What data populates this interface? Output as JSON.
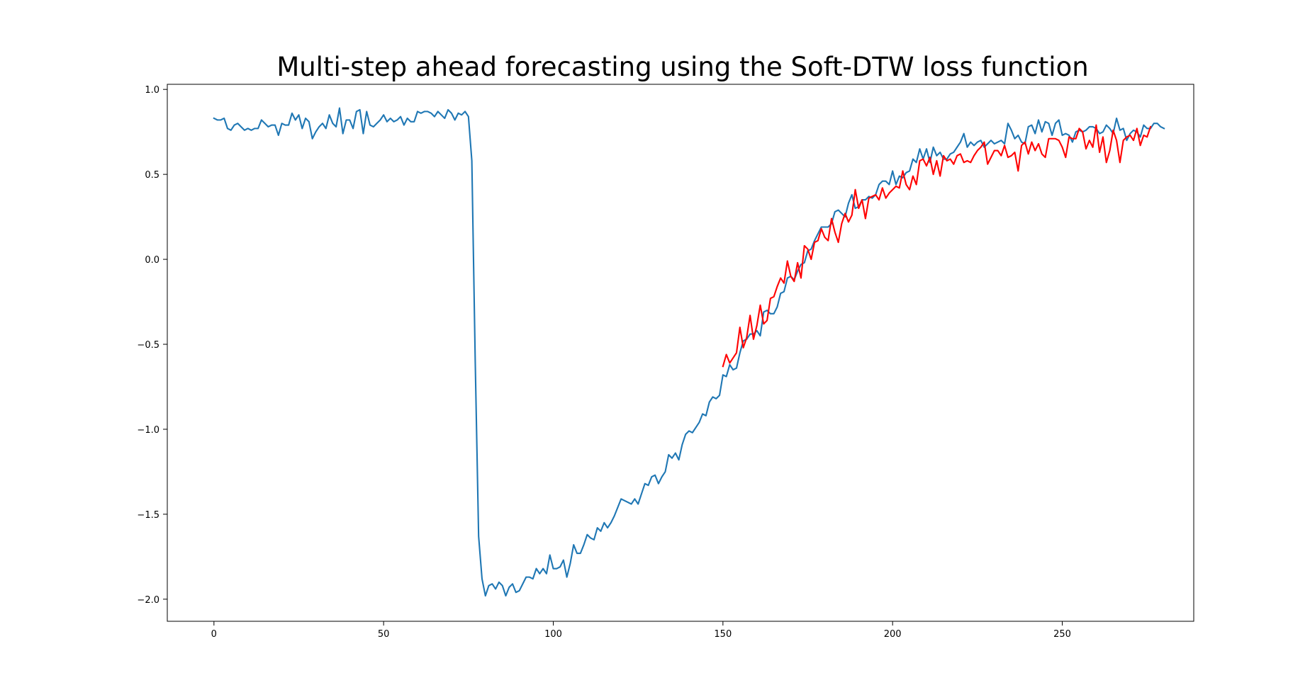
{
  "chart_data": {
    "type": "line",
    "title": "Multi-step ahead forecasting using the Soft-DTW loss function",
    "xlabel": "",
    "ylabel": "",
    "xlim": [
      -13.75,
      288.75
    ],
    "ylim": [
      -2.13,
      1.03
    ],
    "xticks": [
      0,
      50,
      100,
      150,
      200,
      250
    ],
    "yticks": [
      1.0,
      0.5,
      0.0,
      -0.5,
      -1.0,
      -1.5,
      -2.0
    ],
    "xtick_labels": [
      "0",
      "50",
      "100",
      "150",
      "200",
      "250"
    ],
    "ytick_labels": [
      "1.0",
      "0.5",
      "0.0",
      "−0.5",
      "−1.0",
      "−1.5",
      "−2.0"
    ],
    "grid": false,
    "legend": "none",
    "series": [
      {
        "color": "#1f77b4",
        "x_start": 0,
        "values": [
          0.83,
          0.82,
          0.82,
          0.83,
          0.77,
          0.76,
          0.79,
          0.8,
          0.78,
          0.76,
          0.77,
          0.76,
          0.77,
          0.77,
          0.82,
          0.8,
          0.78,
          0.79,
          0.79,
          0.73,
          0.8,
          0.79,
          0.79,
          0.86,
          0.82,
          0.85,
          0.77,
          0.83,
          0.81,
          0.71,
          0.75,
          0.78,
          0.8,
          0.77,
          0.85,
          0.8,
          0.78,
          0.89,
          0.74,
          0.82,
          0.82,
          0.77,
          0.87,
          0.88,
          0.74,
          0.87,
          0.79,
          0.78,
          0.8,
          0.82,
          0.85,
          0.81,
          0.83,
          0.81,
          0.82,
          0.84,
          0.79,
          0.83,
          0.81,
          0.81,
          0.87,
          0.86,
          0.87,
          0.87,
          0.86,
          0.84,
          0.87,
          0.85,
          0.83,
          0.88,
          0.86,
          0.82,
          0.86,
          0.85,
          0.87,
          0.84,
          0.58,
          -0.6,
          -1.63,
          -1.88,
          -1.98,
          -1.92,
          -1.91,
          -1.94,
          -1.9,
          -1.92,
          -1.98,
          -1.93,
          -1.91,
          -1.96,
          -1.95,
          -1.91,
          -1.87,
          -1.87,
          -1.88,
          -1.82,
          -1.85,
          -1.82,
          -1.85,
          -1.74,
          -1.82,
          -1.82,
          -1.81,
          -1.77,
          -1.87,
          -1.79,
          -1.68,
          -1.73,
          -1.73,
          -1.68,
          -1.62,
          -1.64,
          -1.65,
          -1.58,
          -1.6,
          -1.55,
          -1.58,
          -1.55,
          -1.51,
          -1.46,
          -1.41,
          -1.42,
          -1.43,
          -1.44,
          -1.41,
          -1.44,
          -1.38,
          -1.32,
          -1.33,
          -1.28,
          -1.27,
          -1.32,
          -1.28,
          -1.25,
          -1.15,
          -1.17,
          -1.14,
          -1.18,
          -1.09,
          -1.03,
          -1.01,
          -1.02,
          -0.99,
          -0.96,
          -0.91,
          -0.92,
          -0.84,
          -0.81,
          -0.82,
          -0.8,
          -0.68,
          -0.69,
          -0.62,
          -0.65,
          -0.64,
          -0.55,
          -0.48,
          -0.47,
          -0.44,
          -0.44,
          -0.42,
          -0.45,
          -0.31,
          -0.3,
          -0.32,
          -0.32,
          -0.28,
          -0.2,
          -0.19,
          -0.11,
          -0.1,
          -0.12,
          -0.07,
          -0.03,
          -0.02,
          0.05,
          0.06,
          0.11,
          0.15,
          0.19,
          0.19,
          0.19,
          0.21,
          0.28,
          0.29,
          0.27,
          0.25,
          0.33,
          0.38,
          0.3,
          0.31,
          0.35,
          0.35,
          0.37,
          0.36,
          0.38,
          0.44,
          0.46,
          0.46,
          0.44,
          0.52,
          0.44,
          0.49,
          0.48,
          0.51,
          0.52,
          0.59,
          0.57,
          0.65,
          0.59,
          0.65,
          0.57,
          0.66,
          0.61,
          0.63,
          0.59,
          0.59,
          0.62,
          0.63,
          0.66,
          0.69,
          0.74,
          0.66,
          0.69,
          0.67,
          0.69,
          0.7,
          0.66,
          0.68,
          0.7,
          0.68,
          0.69,
          0.7,
          0.68,
          0.8,
          0.76,
          0.71,
          0.73,
          0.69,
          0.68,
          0.78,
          0.79,
          0.74,
          0.82,
          0.75,
          0.81,
          0.8,
          0.73,
          0.8,
          0.82,
          0.73,
          0.74,
          0.73,
          0.69,
          0.75,
          0.76,
          0.75,
          0.76,
          0.78,
          0.78,
          0.77,
          0.74,
          0.75,
          0.79,
          0.77,
          0.74,
          0.83,
          0.76,
          0.77,
          0.7,
          0.74,
          0.76,
          0.75,
          0.72,
          0.79,
          0.77,
          0.77,
          0.8,
          0.8,
          0.78,
          0.77
        ]
      },
      {
        "color": "#ff0000",
        "x_start": 150,
        "values": [
          -0.63,
          -0.56,
          -0.61,
          -0.58,
          -0.55,
          -0.4,
          -0.52,
          -0.46,
          -0.33,
          -0.47,
          -0.39,
          -0.27,
          -0.38,
          -0.36,
          -0.23,
          -0.22,
          -0.16,
          -0.11,
          -0.14,
          -0.01,
          -0.1,
          -0.13,
          -0.02,
          -0.11,
          0.08,
          0.06,
          0.0,
          0.1,
          0.11,
          0.18,
          0.13,
          0.11,
          0.24,
          0.16,
          0.1,
          0.21,
          0.27,
          0.22,
          0.26,
          0.41,
          0.3,
          0.35,
          0.24,
          0.36,
          0.37,
          0.38,
          0.35,
          0.42,
          0.36,
          0.39,
          0.41,
          0.43,
          0.42,
          0.52,
          0.44,
          0.41,
          0.49,
          0.44,
          0.58,
          0.59,
          0.55,
          0.6,
          0.5,
          0.58,
          0.49,
          0.61,
          0.58,
          0.59,
          0.56,
          0.61,
          0.62,
          0.57,
          0.58,
          0.57,
          0.61,
          0.64,
          0.66,
          0.69,
          0.56,
          0.6,
          0.64,
          0.64,
          0.61,
          0.67,
          0.6,
          0.61,
          0.63,
          0.52,
          0.67,
          0.69,
          0.62,
          0.69,
          0.64,
          0.68,
          0.62,
          0.6,
          0.71,
          0.71,
          0.71,
          0.7,
          0.66,
          0.6,
          0.72,
          0.71,
          0.71,
          0.77,
          0.75,
          0.65,
          0.7,
          0.66,
          0.79,
          0.63,
          0.72,
          0.57,
          0.64,
          0.76,
          0.7,
          0.57,
          0.7,
          0.72,
          0.73,
          0.7,
          0.77,
          0.67,
          0.73,
          0.72,
          0.78
        ]
      }
    ]
  }
}
